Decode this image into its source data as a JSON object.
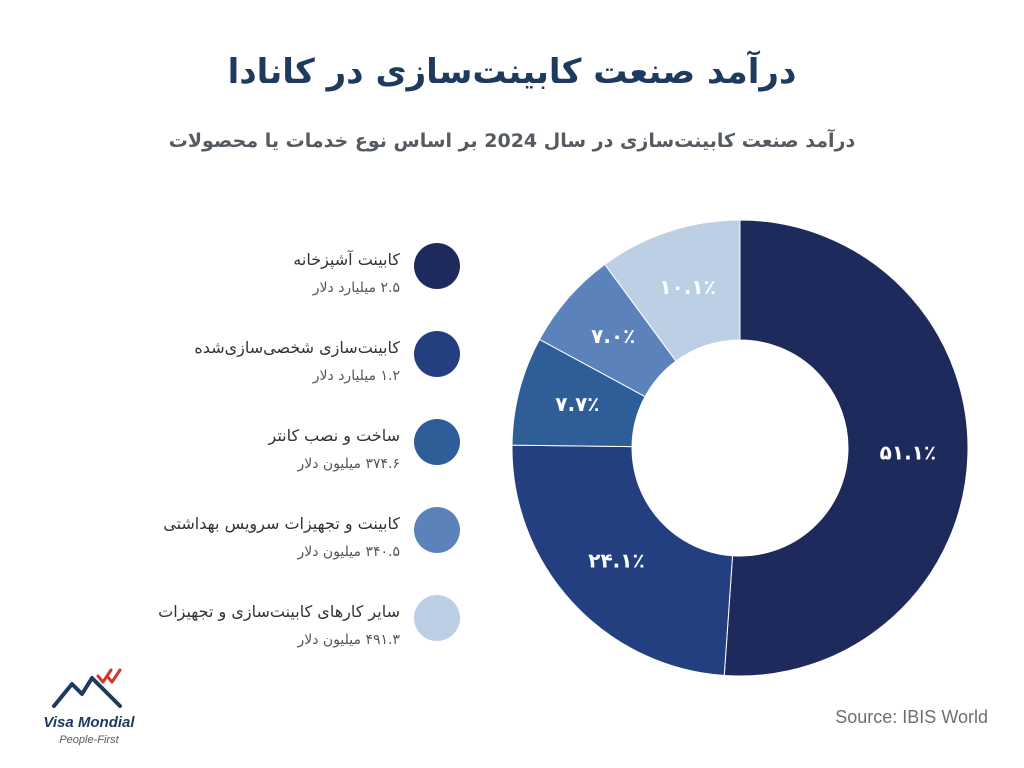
{
  "title": "درآمد صنعت کابینت‌سازی در کانادا",
  "subtitle": "درآمد صنعت کابینت‌سازی در سال 2024 بر اساس نوع خدمات یا محصولات",
  "legend": [
    {
      "label": "کابینت آشپزخانه",
      "value": "۲.۵ میلیارد دلار"
    },
    {
      "label": "کابینت‌سازی شخصی‌سازی‌شده",
      "value": "۱.۲ میلیارد دلار"
    },
    {
      "label": "ساخت و نصب کانتر",
      "value": "۳۷۴.۶ میلیون دلار"
    },
    {
      "label": "کابینت و تجهیزات سرویس بهداشتی",
      "value": "۳۴۰.۵ میلیون دلار"
    },
    {
      "label": "سایر کارهای کابینت‌سازی و تجهیزات",
      "value": "۴۹۱.۳ میلیون دلار"
    }
  ],
  "chart_data": {
    "type": "pie",
    "donut": true,
    "start": "12 o'clock",
    "direction": "clockwise",
    "slices": [
      {
        "name": "کابینت آشپزخانه",
        "value": 51.1,
        "label": "۵۱.۱٪",
        "color": "#1f2a5c"
      },
      {
        "name": "کابینت‌سازی شخصی‌سازی‌شده",
        "value": 24.1,
        "label": "۲۴.۱٪",
        "color": "#243f80"
      },
      {
        "name": "ساخت و نصب کانتر",
        "value": 7.7,
        "label": "۷.۷٪",
        "color": "#2f5d97"
      },
      {
        "name": "کابینت و تجهیزات سرویس بهداشتی",
        "value": 7.0,
        "label": "۷.۰٪",
        "color": "#5b82bb"
      },
      {
        "name": "سایر کارهای کابینت‌سازی و تجهیزات",
        "value": 10.1,
        "label": "۱۰.۱٪",
        "color": "#bccfe5"
      }
    ]
  },
  "source": "Source: IBIS World",
  "logo": {
    "name": "Visa Mondial",
    "tagline": "People-First",
    "icon": "mountain-logo-icon",
    "colors": {
      "mountain": "#1f3a5f",
      "accent": "#d9342b"
    }
  }
}
